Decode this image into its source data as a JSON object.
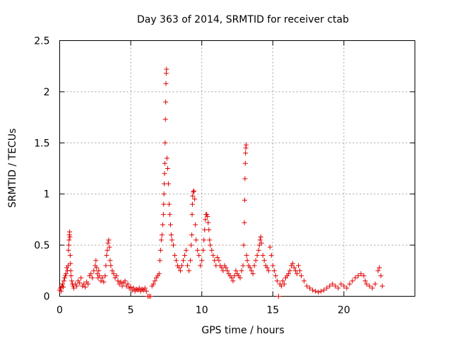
{
  "chart_data": {
    "type": "scatter",
    "title": "Day 363 of 2014, SRMTID for receiver ctab",
    "xlabel": "GPS time / hours",
    "ylabel": "SRMTID / TECUs",
    "xlim": [
      0,
      25
    ],
    "ylim": [
      0,
      2.5
    ],
    "xticks": [
      0,
      5,
      10,
      15,
      20
    ],
    "xtick_labels": [
      "0",
      "5",
      "10",
      "15",
      "20"
    ],
    "yticks": [
      0,
      0.5,
      1,
      1.5,
      2,
      2.5
    ],
    "ytick_labels": [
      "0",
      "0.5",
      "1",
      "1.5",
      "2",
      "2.5"
    ],
    "grid": true,
    "marker": "+",
    "marker_color": "#e00000",
    "series": [
      {
        "name": "SRMTID",
        "x": [
          0.0,
          0.05,
          0.1,
          0.15,
          0.2,
          0.25,
          0.3,
          0.35,
          0.4,
          0.45,
          0.5,
          0.55,
          0.6,
          0.62,
          0.64,
          0.66,
          0.68,
          0.7,
          0.72,
          0.74,
          0.76,
          0.78,
          0.8,
          0.85,
          0.9,
          0.95,
          1.0,
          1.1,
          1.2,
          1.3,
          1.4,
          1.5,
          1.6,
          1.7,
          1.8,
          1.9,
          2.0,
          2.1,
          2.2,
          2.3,
          2.4,
          2.5,
          2.55,
          2.6,
          2.65,
          2.7,
          2.75,
          2.8,
          2.9,
          3.0,
          3.1,
          3.2,
          3.25,
          3.3,
          3.35,
          3.4,
          3.45,
          3.5,
          3.55,
          3.6,
          3.7,
          3.8,
          3.9,
          4.0,
          4.1,
          4.2,
          4.3,
          4.4,
          4.5,
          4.6,
          4.7,
          4.8,
          4.9,
          5.0,
          5.1,
          5.2,
          5.3,
          5.4,
          5.5,
          5.6,
          5.7,
          5.8,
          5.9,
          6.0,
          6.1,
          6.2,
          6.3,
          6.4,
          6.5,
          6.6,
          6.7,
          6.8,
          6.9,
          7.0,
          7.05,
          7.1,
          7.15,
          7.2,
          7.25,
          7.3,
          7.32,
          7.34,
          7.36,
          7.38,
          7.4,
          7.42,
          7.44,
          7.46,
          7.48,
          7.5,
          7.52,
          7.55,
          7.6,
          7.65,
          7.7,
          7.75,
          7.8,
          7.85,
          7.9,
          8.0,
          8.1,
          8.2,
          8.3,
          8.4,
          8.5,
          8.6,
          8.7,
          8.8,
          8.9,
          9.0,
          9.1,
          9.2,
          9.25,
          9.3,
          9.32,
          9.34,
          9.36,
          9.4,
          9.45,
          9.5,
          9.55,
          9.6,
          9.7,
          9.8,
          9.9,
          10.0,
          10.1,
          10.15,
          10.2,
          10.25,
          10.3,
          10.35,
          10.4,
          10.45,
          10.5,
          10.55,
          10.6,
          10.7,
          10.8,
          10.9,
          11.0,
          11.1,
          11.2,
          11.3,
          11.4,
          11.5,
          11.6,
          11.7,
          11.8,
          11.9,
          12.0,
          12.1,
          12.2,
          12.3,
          12.4,
          12.5,
          12.6,
          12.7,
          12.8,
          12.9,
          12.95,
          13.0,
          13.02,
          13.04,
          13.06,
          13.08,
          13.1,
          13.12,
          13.15,
          13.2,
          13.3,
          13.4,
          13.5,
          13.6,
          13.7,
          13.8,
          13.9,
          14.0,
          14.05,
          14.1,
          14.15,
          14.2,
          14.3,
          14.4,
          14.5,
          14.6,
          14.7,
          14.8,
          14.9,
          15.0,
          15.1,
          15.2,
          15.3,
          15.4,
          15.5,
          15.6,
          15.7,
          15.8,
          15.9,
          16.0,
          16.1,
          16.2,
          16.3,
          16.4,
          16.5,
          16.6,
          16.7,
          16.8,
          16.9,
          17.0,
          17.2,
          17.4,
          17.6,
          17.8,
          18.0,
          18.2,
          18.4,
          18.6,
          18.8,
          19.0,
          19.2,
          19.4,
          19.6,
          19.8,
          20.0,
          20.2,
          20.4,
          20.6,
          20.8,
          21.0,
          21.2,
          21.4,
          21.5,
          21.6,
          21.8,
          22.0,
          22.2,
          22.4,
          22.5,
          22.6,
          22.7
        ],
        "y": [
          0.06,
          0.08,
          0.05,
          0.1,
          0.12,
          0.09,
          0.15,
          0.18,
          0.2,
          0.22,
          0.28,
          0.25,
          0.3,
          0.45,
          0.5,
          0.55,
          0.6,
          0.63,
          0.58,
          0.4,
          0.32,
          0.25,
          0.2,
          0.15,
          0.12,
          0.1,
          0.08,
          0.12,
          0.1,
          0.15,
          0.13,
          0.18,
          0.1,
          0.12,
          0.09,
          0.14,
          0.12,
          0.2,
          0.22,
          0.18,
          0.25,
          0.3,
          0.35,
          0.28,
          0.22,
          0.18,
          0.25,
          0.2,
          0.15,
          0.18,
          0.14,
          0.2,
          0.3,
          0.4,
          0.45,
          0.52,
          0.55,
          0.48,
          0.35,
          0.3,
          0.25,
          0.22,
          0.18,
          0.2,
          0.15,
          0.12,
          0.14,
          0.1,
          0.13,
          0.15,
          0.1,
          0.12,
          0.08,
          0.09,
          0.06,
          0.08,
          0.05,
          0.07,
          0.06,
          0.08,
          0.05,
          0.07,
          0.06,
          0.08,
          0.05,
          0.0,
          0.0,
          0.0,
          0.1,
          0.12,
          0.15,
          0.18,
          0.2,
          0.22,
          0.35,
          0.45,
          0.55,
          0.6,
          0.7,
          0.8,
          0.9,
          1.0,
          1.1,
          1.2,
          1.3,
          1.5,
          1.73,
          1.9,
          2.08,
          2.18,
          2.22,
          1.35,
          1.25,
          1.1,
          0.9,
          0.8,
          0.7,
          0.6,
          0.55,
          0.5,
          0.4,
          0.35,
          0.3,
          0.28,
          0.25,
          0.3,
          0.35,
          0.4,
          0.45,
          0.3,
          0.25,
          0.35,
          0.5,
          0.6,
          0.8,
          0.9,
          0.98,
          1.02,
          1.03,
          0.95,
          0.7,
          0.55,
          0.45,
          0.4,
          0.3,
          0.35,
          0.45,
          0.55,
          0.65,
          0.75,
          0.8,
          0.8,
          0.78,
          0.72,
          0.65,
          0.55,
          0.5,
          0.45,
          0.4,
          0.35,
          0.3,
          0.38,
          0.35,
          0.3,
          0.28,
          0.25,
          0.3,
          0.28,
          0.25,
          0.22,
          0.2,
          0.18,
          0.15,
          0.2,
          0.25,
          0.22,
          0.2,
          0.18,
          0.25,
          0.3,
          0.5,
          0.72,
          0.94,
          1.15,
          1.3,
          1.4,
          1.45,
          1.48,
          0.4,
          0.35,
          0.3,
          0.28,
          0.25,
          0.22,
          0.3,
          0.35,
          0.4,
          0.45,
          0.5,
          0.55,
          0.58,
          0.52,
          0.4,
          0.35,
          0.3,
          0.28,
          0.25,
          0.48,
          0.4,
          0.3,
          0.25,
          0.2,
          0.15,
          0.0,
          0.12,
          0.1,
          0.15,
          0.12,
          0.18,
          0.2,
          0.22,
          0.25,
          0.3,
          0.32,
          0.28,
          0.25,
          0.22,
          0.3,
          0.25,
          0.2,
          0.15,
          0.1,
          0.08,
          0.06,
          0.05,
          0.04,
          0.05,
          0.06,
          0.08,
          0.1,
          0.12,
          0.1,
          0.08,
          0.12,
          0.1,
          0.08,
          0.12,
          0.15,
          0.18,
          0.2,
          0.22,
          0.2,
          0.15,
          0.12,
          0.1,
          0.08,
          0.12,
          0.25,
          0.28,
          0.2,
          0.1
        ]
      }
    ]
  }
}
